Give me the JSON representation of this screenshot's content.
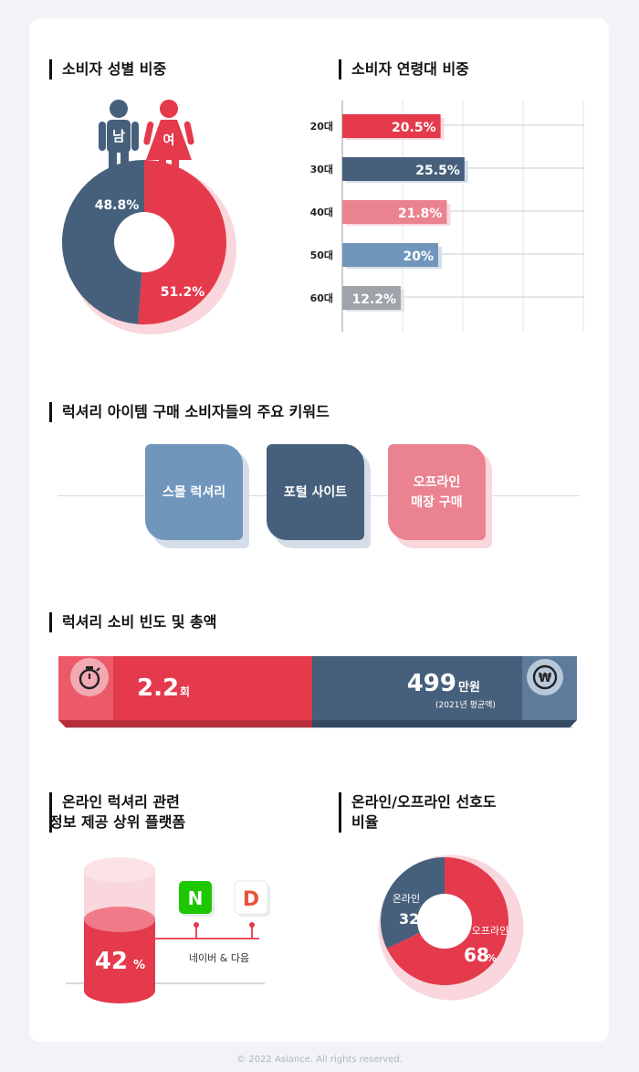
{
  "colors": {
    "red": "#e43a4c",
    "navy": "#46607c",
    "pink": "#ea8290",
    "lightblue": "#7196bb",
    "gray": "#9fa3aa",
    "shadow_red": "#f9d7dc",
    "shadow_blue": "#d5dee8"
  },
  "gender": {
    "title": "소비자 성별 비중",
    "male_label": "남",
    "female_label": "여",
    "chart_data": {
      "type": "pie",
      "categories": [
        "남",
        "여"
      ],
      "values": [
        48.8,
        51.2
      ],
      "value_labels": [
        "48.8%",
        "51.2%"
      ]
    }
  },
  "age": {
    "title": "소비자 연령대 비중",
    "chart_data": {
      "type": "bar",
      "categories": [
        "20대",
        "30대",
        "40대",
        "50대",
        "60대"
      ],
      "values": [
        20.5,
        25.5,
        21.8,
        20,
        12.2
      ],
      "value_labels": [
        "20.5%",
        "25.5%",
        "21.8%",
        "20%",
        "12.2%"
      ],
      "xlim": [
        0,
        100
      ],
      "grid": true
    }
  },
  "keywords": {
    "title": "럭셔리 아이템 구매 소비자들의 주요 키워드",
    "items": [
      {
        "label": "스몰 럭셔리"
      },
      {
        "label": "포털 사이트"
      },
      {
        "label_line1": "오프라인",
        "label_line2": "매장 구매"
      }
    ]
  },
  "frequency": {
    "title": "럭셔리 소비 빈도 및 총액",
    "count_value": "2.2",
    "count_unit": "회",
    "total_value": "499",
    "total_unit": "만원",
    "total_note": "(2021년 평균액)",
    "timer_icon": "stopwatch-icon",
    "won_icon": "won-icon",
    "won_symbol": "₩"
  },
  "platform": {
    "title_line1": "온라인 럭셔리 관련",
    "title_line2": "정보 제공 상위 플랫폼",
    "percent": "42",
    "percent_unit": "%",
    "naver_logo": "N",
    "daum_logo": "D",
    "caption": "네이버 & 다음"
  },
  "preference": {
    "title_line1": "온라인/오프라인 선호도",
    "title_line2": "비율",
    "chart_data": {
      "type": "pie",
      "categories": [
        "온라인",
        "오프라인"
      ],
      "values": [
        32,
        68
      ],
      "value_labels": [
        "32",
        "68"
      ],
      "unit": "%"
    }
  },
  "footer": "© 2022 Asiance. All rights reserved."
}
